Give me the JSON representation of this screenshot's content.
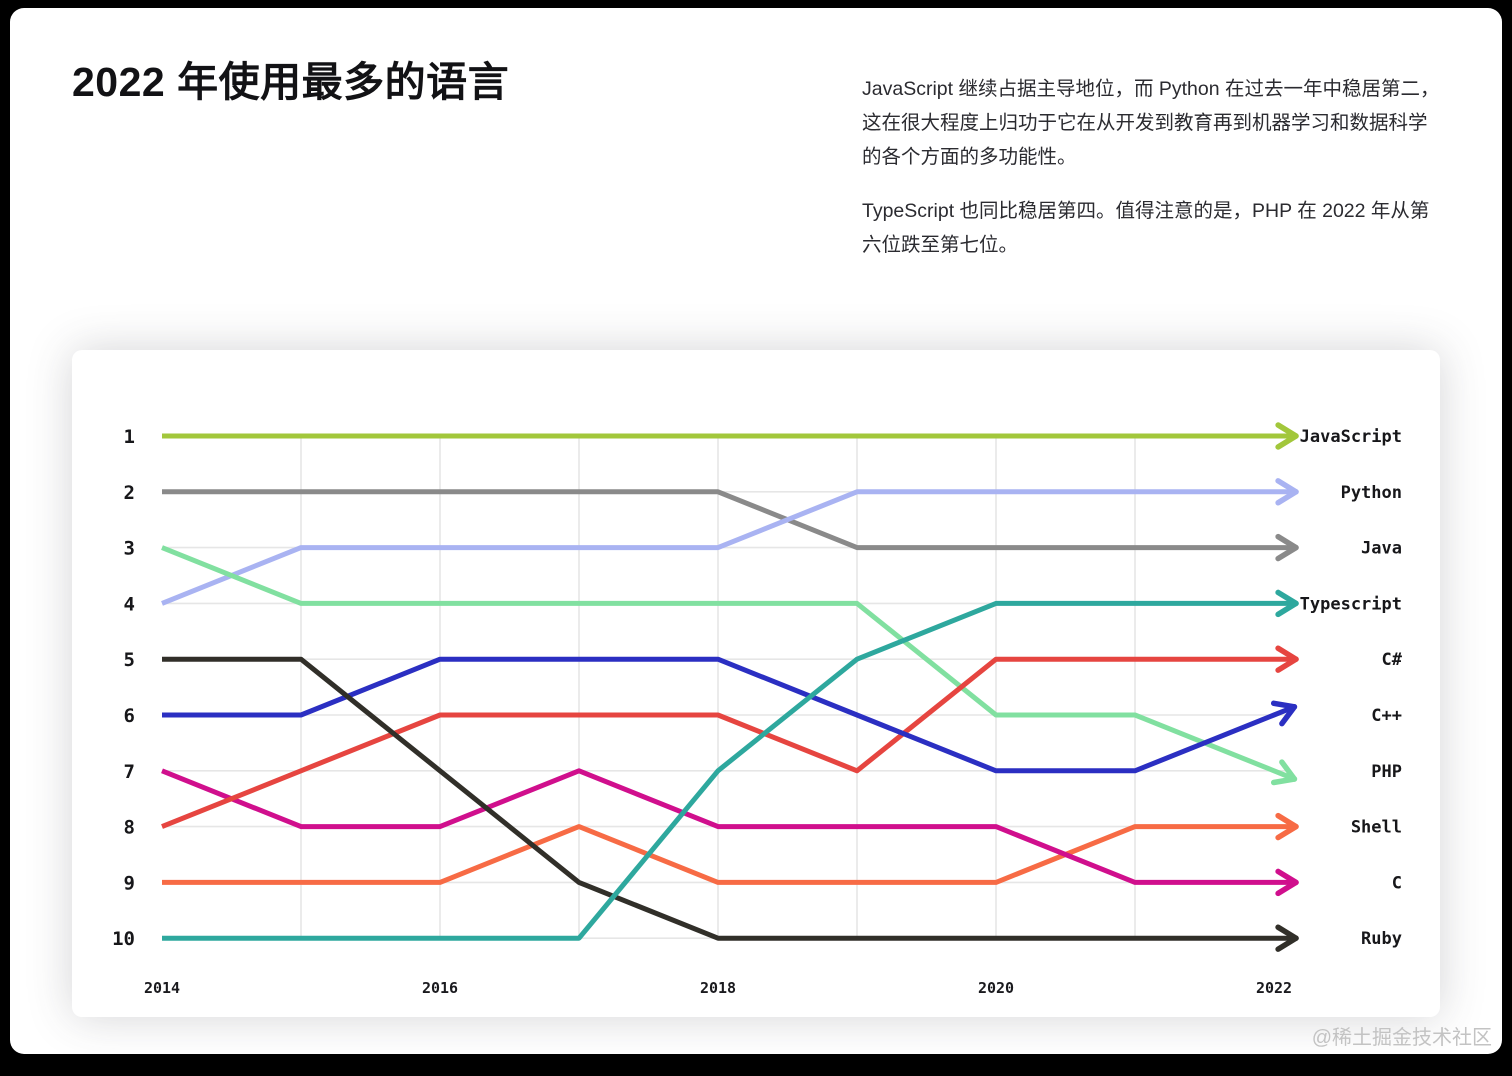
{
  "page": {
    "title": "2022 年使用最多的语言",
    "paragraphs": [
      "JavaScript 继续占据主导地位，而 Python 在过去一年中稳居第二，这在很大程度上归功于它在从开发到教育再到机器学习和数据科学的各个方面的多功能性。",
      "TypeScript 也同比稳居第四。值得注意的是，PHP 在 2022 年从第六位跌至第七位。"
    ],
    "watermark": "@稀土掘金技术社区"
  },
  "chart_data": {
    "type": "line",
    "subtype": "bump-rank-chart",
    "x": [
      2014,
      2015,
      2016,
      2017,
      2018,
      2019,
      2020,
      2021,
      2022
    ],
    "x_tick_years": [
      2014,
      2016,
      2018,
      2020,
      2022
    ],
    "rank_axis": [
      1,
      2,
      3,
      4,
      5,
      6,
      7,
      8,
      9,
      10
    ],
    "grid": true,
    "grid_color": "#e6e6e6",
    "legend_position": "right-of-lines",
    "series": [
      {
        "name": "JavaScript",
        "color": "#a2c73b",
        "ranks": [
          1,
          1,
          1,
          1,
          1,
          1,
          1,
          1,
          1
        ]
      },
      {
        "name": "Python",
        "color": "#a9b3f2",
        "ranks": [
          4,
          3,
          3,
          3,
          3,
          2,
          2,
          2,
          2
        ]
      },
      {
        "name": "Java",
        "color": "#8a8a8a",
        "ranks": [
          2,
          2,
          2,
          2,
          2,
          3,
          3,
          3,
          3
        ]
      },
      {
        "name": "Typescript",
        "color": "#2ea89e",
        "ranks": [
          10,
          10,
          10,
          10,
          7,
          5,
          4,
          4,
          4
        ]
      },
      {
        "name": "C#",
        "color": "#e64540",
        "ranks": [
          8,
          7,
          6,
          6,
          6,
          7,
          5,
          5,
          5
        ]
      },
      {
        "name": "C++",
        "color": "#2b2fc2",
        "ranks": [
          6,
          6,
          5,
          5,
          5,
          6,
          7,
          7,
          6
        ]
      },
      {
        "name": "PHP",
        "color": "#81e0a0",
        "ranks": [
          3,
          4,
          4,
          4,
          4,
          4,
          6,
          6,
          7
        ]
      },
      {
        "name": "Shell",
        "color": "#f76b45",
        "ranks": [
          9,
          9,
          9,
          8,
          9,
          9,
          9,
          8,
          8
        ]
      },
      {
        "name": "C",
        "color": "#d00f8d",
        "ranks": [
          7,
          8,
          8,
          7,
          8,
          8,
          8,
          9,
          9
        ]
      },
      {
        "name": "Ruby",
        "color": "#312f29",
        "ranks": [
          5,
          5,
          7,
          9,
          10,
          10,
          10,
          10,
          10
        ]
      }
    ]
  }
}
